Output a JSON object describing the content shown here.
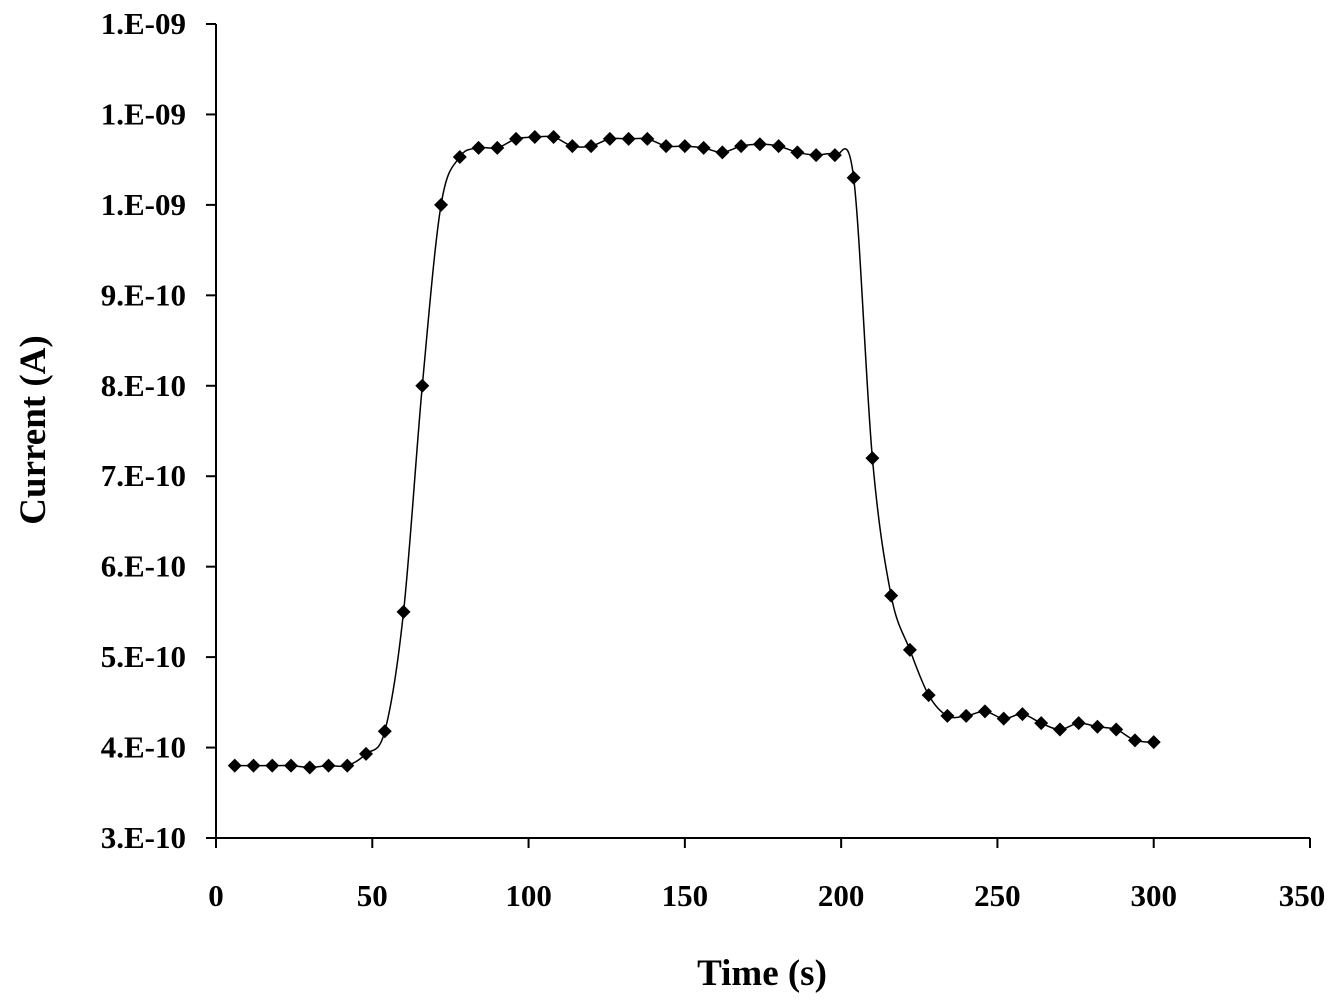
{
  "chart_data": {
    "type": "scatter",
    "title": "",
    "xlabel": "Time (s)",
    "ylabel": "Current (A)",
    "xlim": [
      0,
      350
    ],
    "ylim": [
      3e-10,
      1.2e-09
    ],
    "x_ticks": [
      0,
      50,
      100,
      150,
      200,
      250,
      300,
      350
    ],
    "x_tick_labels": [
      "0",
      "50",
      "100",
      "150",
      "200",
      "250",
      "300",
      "350"
    ],
    "y_ticks": [
      3e-10,
      4e-10,
      5e-10,
      6e-10,
      7e-10,
      8e-10,
      9e-10,
      1e-09,
      1.1e-09,
      1.2e-09
    ],
    "y_tick_labels": [
      "3.E-10",
      "4.E-10",
      "5.E-10",
      "6.E-10",
      "7.E-10",
      "8.E-10",
      "9.E-10",
      "1.E-09",
      "1.E-09",
      "1.E-09"
    ],
    "grid": false,
    "legend": "none",
    "marker": "diamond",
    "line": "smooth",
    "color": "#000000",
    "series": [
      {
        "x": [
          6,
          12,
          18,
          24,
          30,
          36,
          42,
          48,
          54,
          60,
          66,
          72,
          78,
          84,
          90,
          96,
          102,
          108,
          114,
          120,
          126,
          132,
          138,
          144,
          150,
          156,
          162,
          168,
          174,
          180,
          186,
          192,
          198,
          204,
          210,
          216,
          222,
          228,
          234,
          240,
          246,
          252,
          258,
          264,
          270,
          276,
          282,
          288,
          294,
          300
        ],
        "y": [
          3.8e-10,
          3.8e-10,
          3.8e-10,
          3.8e-10,
          3.78e-10,
          3.8e-10,
          3.8e-10,
          3.93e-10,
          4.18e-10,
          5.5e-10,
          8e-10,
          1e-09,
          1.053e-09,
          1.063e-09,
          1.063e-09,
          1.073e-09,
          1.075e-09,
          1.075e-09,
          1.065e-09,
          1.065e-09,
          1.073e-09,
          1.073e-09,
          1.073e-09,
          1.065e-09,
          1.065e-09,
          1.063e-09,
          1.058e-09,
          1.065e-09,
          1.067e-09,
          1.065e-09,
          1.058e-09,
          1.055e-09,
          1.055e-09,
          1.03e-09,
          7.2e-10,
          5.68e-10,
          5.08e-10,
          4.58e-10,
          4.35e-10,
          4.35e-10,
          4.4e-10,
          4.32e-10,
          4.37e-10,
          4.27e-10,
          4.2e-10,
          4.27e-10,
          4.23e-10,
          4.2e-10,
          4.08e-10,
          4.06e-10
        ]
      }
    ]
  }
}
